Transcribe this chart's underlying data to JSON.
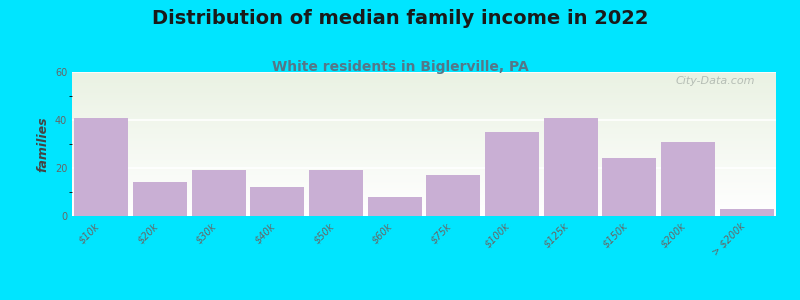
{
  "title": "Distribution of median family income in 2022",
  "subtitle": "White residents in Biglerville, PA",
  "ylabel": "families",
  "categories": [
    "$10k",
    "$20k",
    "$30k",
    "$40k",
    "$50k",
    "$60k",
    "$75k",
    "$100k",
    "$125k",
    "$150k",
    "$200k",
    "> $200k"
  ],
  "values": [
    41,
    14,
    19,
    12,
    19,
    8,
    17,
    35,
    41,
    24,
    31,
    3
  ],
  "bar_color": "#c9afd4",
  "background_outer": "#00e5ff",
  "background_plot_top": "#eaf2e3",
  "background_plot_bottom": "#ffffff",
  "title_fontsize": 14,
  "subtitle_fontsize": 10,
  "ylabel_fontsize": 9,
  "tick_fontsize": 7,
  "ylim": [
    0,
    60
  ],
  "yticks": [
    0,
    20,
    40,
    60
  ],
  "watermark": "City-Data.com"
}
